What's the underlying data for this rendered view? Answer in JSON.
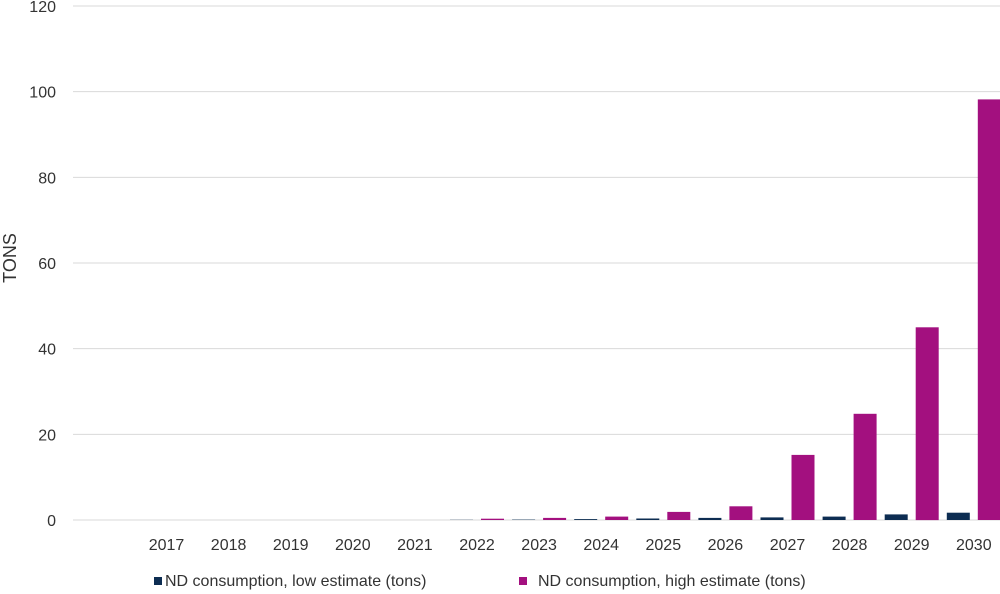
{
  "chart_data": {
    "type": "bar",
    "title": "",
    "xlabel": "",
    "ylabel": "TONS",
    "ylim": [
      0,
      120
    ],
    "yticks": [
      0,
      20,
      40,
      60,
      80,
      100,
      120
    ],
    "grid": true,
    "legend_position": "bottom",
    "categories": [
      "2017",
      "2018",
      "2019",
      "2020",
      "2021",
      "2022",
      "2023",
      "2024",
      "2025",
      "2026",
      "2027",
      "2028",
      "2029",
      "2030"
    ],
    "series": [
      {
        "name": "ND consumption, low estimate (tons)",
        "color": "#0d2d52",
        "values": [
          0,
          0,
          0,
          0,
          0,
          0.05,
          0.1,
          0.2,
          0.35,
          0.5,
          0.6,
          0.8,
          1.3,
          1.7
        ]
      },
      {
        "name": "ND consumption, high estimate (tons)",
        "color": "#a3107f",
        "values": [
          0,
          0,
          0,
          0,
          0,
          0.3,
          0.5,
          0.8,
          1.9,
          3.2,
          15.2,
          24.8,
          45.0,
          98.2
        ]
      }
    ]
  }
}
